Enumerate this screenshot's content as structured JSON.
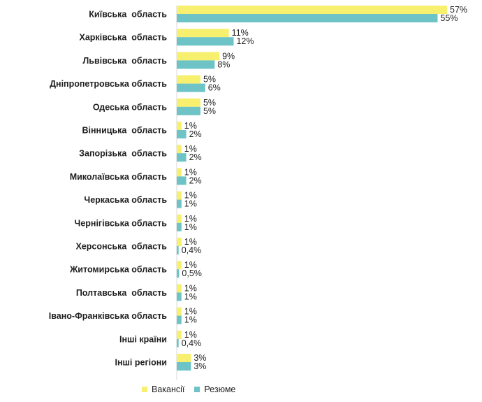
{
  "chart_data": {
    "type": "bar",
    "orientation": "horizontal",
    "categories": [
      "Київська  область",
      "Харківська  область",
      "Львівська  область",
      "Дніпропетровська область",
      "Одеська область",
      "Вінницька  область",
      "Запорізька  область",
      "Миколаївська область",
      "Черкаська область",
      "Чернігівська область",
      "Херсонська  область",
      "Житомирська область",
      "Полтавська  область",
      "Івано-Франківська область",
      "Інші країни",
      "Інші регіони"
    ],
    "series": [
      {
        "name": "Вакансії",
        "color": "#f7ef6e",
        "values": [
          57,
          11,
          9,
          5,
          5,
          1,
          1,
          1,
          1,
          1,
          1,
          1,
          1,
          1,
          1,
          3
        ],
        "labels": [
          "57%",
          "11%",
          "9%",
          "5%",
          "5%",
          "1%",
          "1%",
          "1%",
          "1%",
          "1%",
          "1%",
          "1%",
          "1%",
          "1%",
          "1%",
          "3%"
        ]
      },
      {
        "name": "Резюме",
        "color": "#6ec3c6",
        "values": [
          55,
          12,
          8,
          6,
          5,
          2,
          2,
          2,
          1,
          1,
          0.4,
          0.5,
          1,
          1,
          0.4,
          3
        ],
        "labels": [
          "55%",
          "12%",
          "8%",
          "6%",
          "5%",
          "2%",
          "2%",
          "2%",
          "1%",
          "1%",
          "0,4%",
          "0,5%",
          "1%",
          "1%",
          "0,4%",
          "3%"
        ]
      }
    ],
    "xlim": [
      0,
      57
    ],
    "grid": false,
    "legend_position": "bottom"
  }
}
